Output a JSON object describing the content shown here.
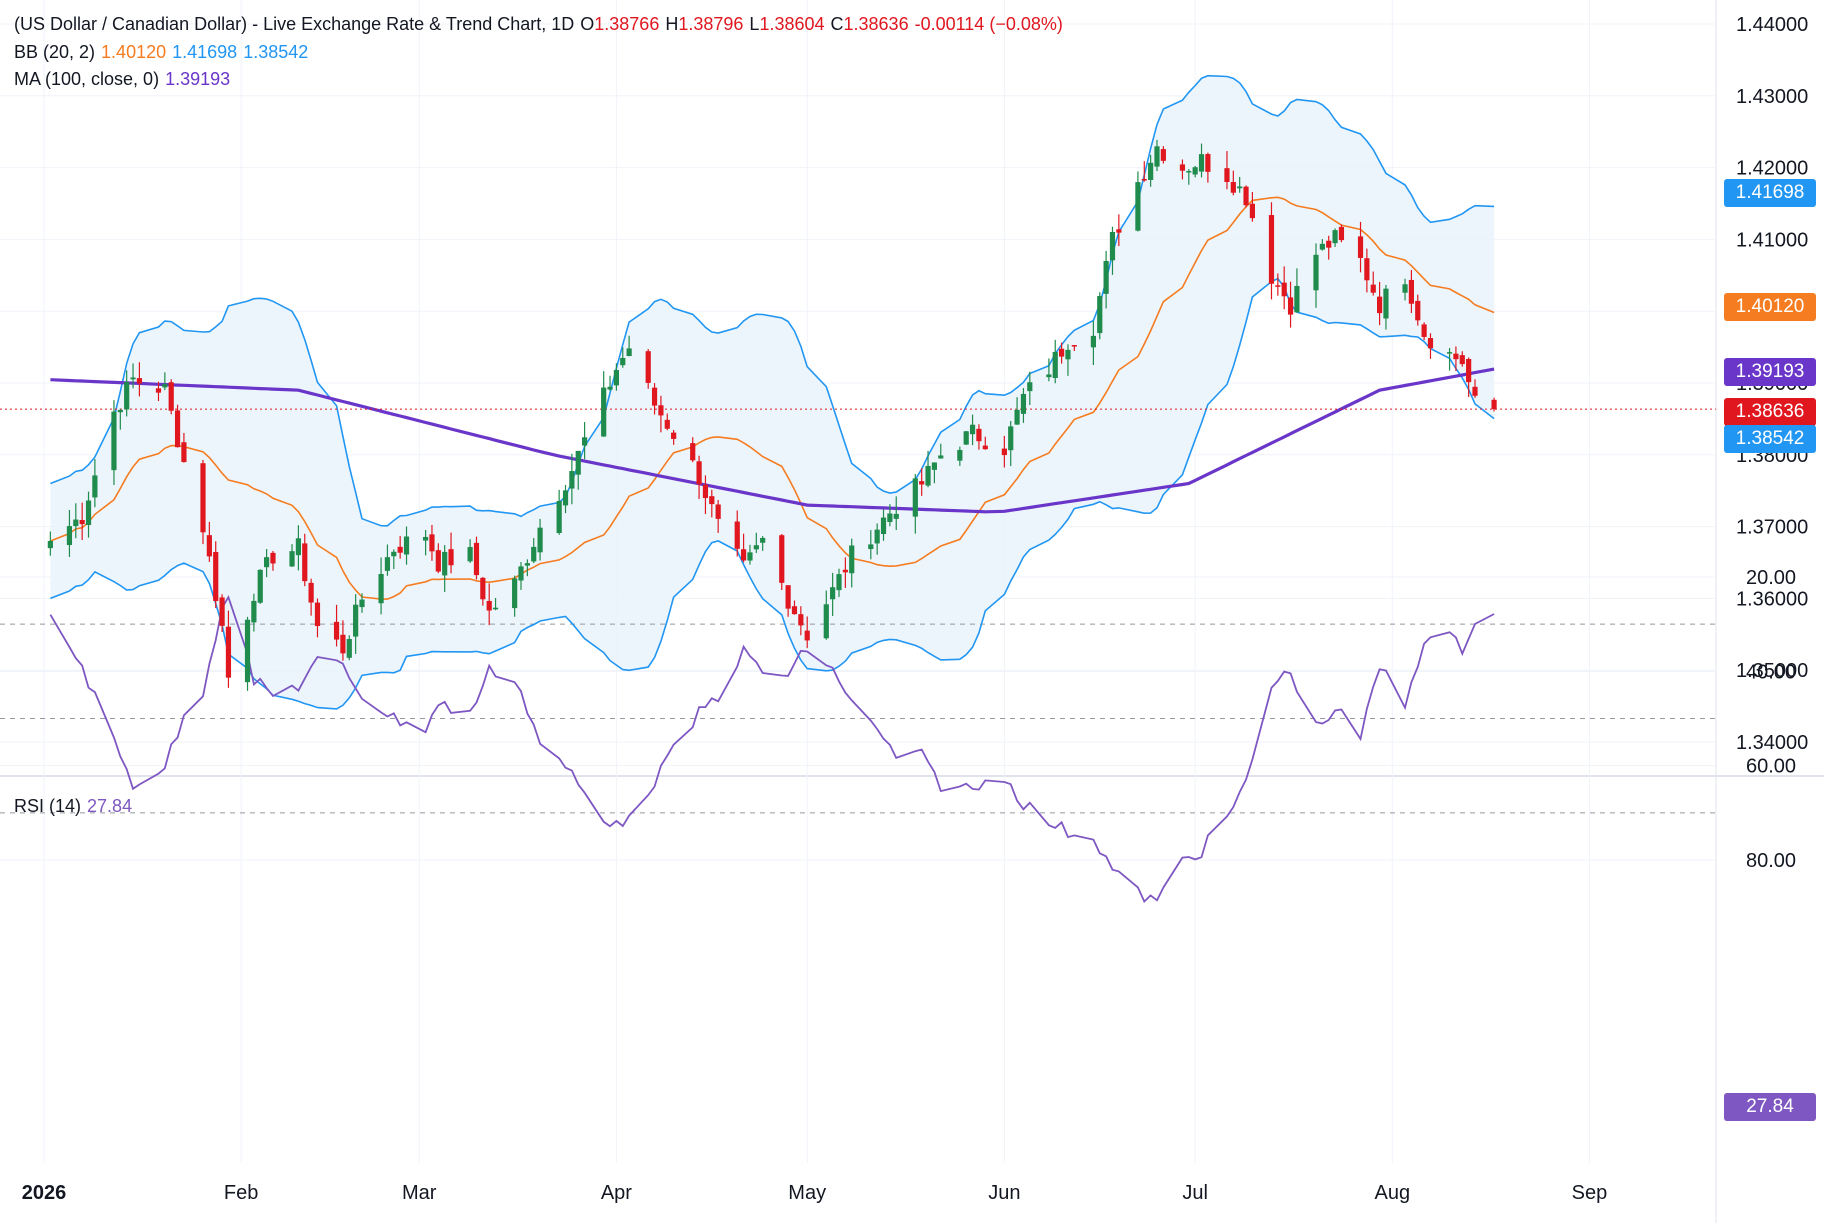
{
  "header": {
    "symbol_title": "(US Dollar / Canadian Dollar) - Live Exchange Rate & Trend Chart, 1D",
    "o_label": "O",
    "o_value": "1.38766",
    "h_label": "H",
    "h_value": "1.38796",
    "l_label": "L",
    "l_value": "1.38604",
    "c_label": "C",
    "c_value": "1.38636",
    "change": "-0.00114 (−0.08%)"
  },
  "indicators": {
    "bb": {
      "label": "BB (20, 2)",
      "basis": "1.40120",
      "upper": "1.41698",
      "lower": "1.38542"
    },
    "ma": {
      "label": "MA (100, close, 0)",
      "value": "1.39193"
    },
    "rsi": {
      "label": "RSI (14)",
      "value": "27.84"
    }
  },
  "price_tags": {
    "upper": "1.41698",
    "basis": "1.40120",
    "ma": "1.39193",
    "last": "1.38636",
    "lower": "1.38542",
    "rsi": "27.84"
  },
  "colors": {
    "up": "#1f8b4c",
    "down": "#e0171f",
    "bb_band": "#2196f3",
    "bb_basis": "#f57c20",
    "ma": "#6a36c9",
    "rsi": "#7e57c2",
    "rsi_zone": "#ede7f6",
    "bb_fill": "#e8f2fb",
    "grid": "#f0f3fa",
    "axis_text": "#131722"
  },
  "chart_data": [
    {
      "type": "candlestick",
      "interval": "1D",
      "ylim": [
        1.335,
        1.445
      ],
      "y_ticks": [
        "1.44000",
        "1.43000",
        "1.42000",
        "1.41000",
        "1.40000",
        "1.39000",
        "1.38000",
        "1.37000",
        "1.36000",
        "1.35000",
        "1.34000"
      ],
      "x_labels": [
        "2026",
        "Feb",
        "Mar",
        "Apr",
        "May",
        "Jun",
        "Jul",
        "Aug",
        "Sep"
      ],
      "key_points_close": [
        [
          "2026-01-02",
          1.368
        ],
        [
          "2026-01-07",
          1.3715
        ],
        [
          "2026-01-12",
          1.386
        ],
        [
          "2026-01-15",
          1.3905
        ],
        [
          "2026-01-20",
          1.389
        ],
        [
          "2026-01-23",
          1.379
        ],
        [
          "2026-01-26",
          1.37
        ],
        [
          "2026-01-29",
          1.356
        ],
        [
          "2026-01-30",
          1.349
        ],
        [
          "2026-02-03",
          1.361
        ],
        [
          "2026-02-06",
          1.366
        ],
        [
          "2026-02-10",
          1.367
        ],
        [
          "2026-02-13",
          1.356
        ],
        [
          "2026-02-17",
          1.353
        ],
        [
          "2026-02-20",
          1.36
        ],
        [
          "2026-02-25",
          1.367
        ],
        [
          "2026-03-02",
          1.369
        ],
        [
          "2026-03-04",
          1.365
        ],
        [
          "2026-03-09",
          1.366
        ],
        [
          "2026-03-12",
          1.358
        ],
        [
          "2026-03-16",
          1.362
        ],
        [
          "2026-03-20",
          1.37
        ],
        [
          "2026-03-25",
          1.378
        ],
        [
          "2026-03-30",
          1.388
        ],
        [
          "2026-04-01",
          1.392
        ],
        [
          "2026-04-03",
          1.395
        ],
        [
          "2026-04-07",
          1.387
        ],
        [
          "2026-04-10",
          1.383
        ],
        [
          "2026-04-14",
          1.377
        ],
        [
          "2026-04-17",
          1.37
        ],
        [
          "2026-04-21",
          1.364
        ],
        [
          "2026-04-24",
          1.368
        ],
        [
          "2026-04-28",
          1.36
        ],
        [
          "2026-05-01",
          1.355
        ],
        [
          "2026-05-05",
          1.361
        ],
        [
          "2026-05-08",
          1.366
        ],
        [
          "2026-05-12",
          1.37
        ],
        [
          "2026-05-15",
          1.373
        ],
        [
          "2026-05-19",
          1.376
        ],
        [
          "2026-05-22",
          1.38
        ],
        [
          "2026-05-27",
          1.383
        ],
        [
          "2026-06-01",
          1.381
        ],
        [
          "2026-06-04",
          1.388
        ],
        [
          "2026-06-08",
          1.392
        ],
        [
          "2026-06-11",
          1.396
        ],
        [
          "2026-06-15",
          1.398
        ],
        [
          "2026-06-18",
          1.41
        ],
        [
          "2026-06-22",
          1.418
        ],
        [
          "2026-06-25",
          1.423
        ],
        [
          "2026-06-29",
          1.42
        ],
        [
          "2026-07-02",
          1.421
        ],
        [
          "2026-07-06",
          1.419
        ],
        [
          "2026-07-09",
          1.416
        ],
        [
          "2026-07-13",
          1.405
        ],
        [
          "2026-07-16",
          1.401
        ],
        [
          "2026-07-20",
          1.408
        ],
        [
          "2026-07-23",
          1.41
        ],
        [
          "2026-07-27",
          1.407
        ],
        [
          "2026-07-30",
          1.401
        ],
        [
          "2026-08-03",
          1.405
        ],
        [
          "2026-08-06",
          1.397
        ],
        [
          "2026-08-10",
          1.394
        ],
        [
          "2026-08-12",
          1.393
        ],
        [
          "2026-08-14",
          1.387
        ],
        [
          "2026-08-17",
          1.38636
        ]
      ],
      "last": {
        "open": 1.38766,
        "high": 1.38796,
        "low": 1.38604,
        "close": 1.38636
      }
    },
    {
      "type": "line",
      "name": "RSI (14)",
      "ylim": [
        15,
        95
      ],
      "y_ticks": [
        "80.00",
        "60.00",
        "40.00",
        "20.00"
      ],
      "levels": [
        70,
        50,
        30
      ],
      "key_points": [
        [
          "2026-01-02",
          28
        ],
        [
          "2026-01-07",
          39
        ],
        [
          "2026-01-12",
          55
        ],
        [
          "2026-01-15",
          64
        ],
        [
          "2026-01-20",
          60
        ],
        [
          "2026-01-23",
          50
        ],
        [
          "2026-01-26",
          44
        ],
        [
          "2026-01-29",
          26
        ],
        [
          "2026-01-30",
          23
        ],
        [
          "2026-02-03",
          42
        ],
        [
          "2026-02-06",
          45
        ],
        [
          "2026-02-10",
          43
        ],
        [
          "2026-02-13",
          38
        ],
        [
          "2026-02-17",
          39
        ],
        [
          "2026-02-20",
          45
        ],
        [
          "2026-02-25",
          50
        ],
        [
          "2026-03-02",
          52
        ],
        [
          "2026-03-04",
          47
        ],
        [
          "2026-03-09",
          49
        ],
        [
          "2026-03-12",
          40
        ],
        [
          "2026-03-16",
          41
        ],
        [
          "2026-03-20",
          55
        ],
        [
          "2026-03-25",
          62
        ],
        [
          "2026-03-30",
          72
        ],
        [
          "2026-04-01",
          71
        ],
        [
          "2026-04-03",
          72
        ],
        [
          "2026-04-07",
          63
        ],
        [
          "2026-04-10",
          57
        ],
        [
          "2026-04-14",
          49
        ],
        [
          "2026-04-17",
          45
        ],
        [
          "2026-04-21",
          36
        ],
        [
          "2026-04-24",
          40
        ],
        [
          "2026-04-28",
          41
        ],
        [
          "2026-05-01",
          35
        ],
        [
          "2026-05-05",
          40
        ],
        [
          "2026-05-08",
          46
        ],
        [
          "2026-05-12",
          53
        ],
        [
          "2026-05-15",
          58
        ],
        [
          "2026-05-19",
          58
        ],
        [
          "2026-05-22",
          64
        ],
        [
          "2026-05-27",
          65
        ],
        [
          "2026-06-01",
          62
        ],
        [
          "2026-06-04",
          68
        ],
        [
          "2026-06-08",
          72
        ],
        [
          "2026-06-11",
          74
        ],
        [
          "2026-06-15",
          75
        ],
        [
          "2026-06-18",
          82
        ],
        [
          "2026-06-22",
          87
        ],
        [
          "2026-06-25",
          89
        ],
        [
          "2026-06-29",
          80
        ],
        [
          "2026-07-02",
          78
        ],
        [
          "2026-07-06",
          71
        ],
        [
          "2026-07-09",
          64
        ],
        [
          "2026-07-13",
          43
        ],
        [
          "2026-07-16",
          40
        ],
        [
          "2026-07-20",
          52
        ],
        [
          "2026-07-23",
          48
        ],
        [
          "2026-07-27",
          54
        ],
        [
          "2026-07-30",
          39
        ],
        [
          "2026-08-03",
          47
        ],
        [
          "2026-08-06",
          33
        ],
        [
          "2026-08-10",
          33
        ],
        [
          "2026-08-12",
          35
        ],
        [
          "2026-08-14",
          29
        ],
        [
          "2026-08-17",
          27.84
        ]
      ]
    }
  ]
}
